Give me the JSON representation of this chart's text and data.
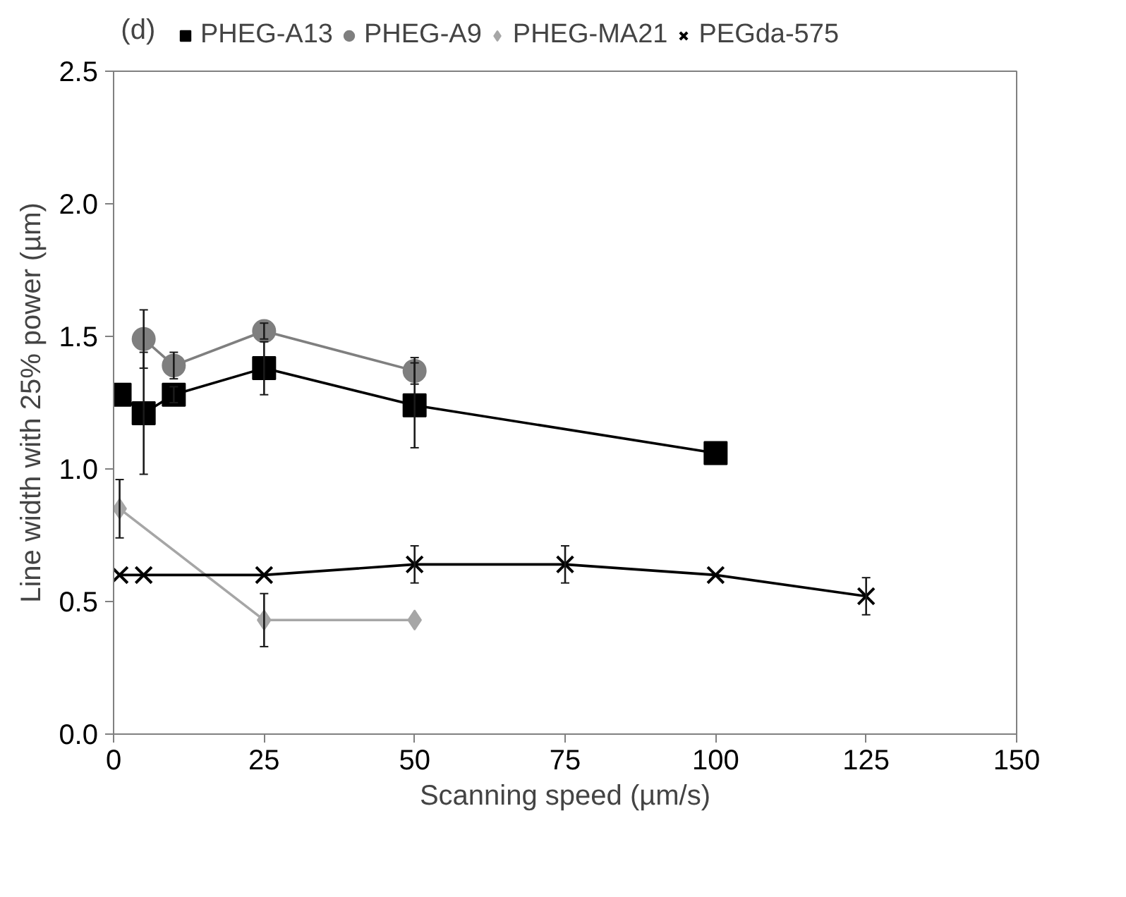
{
  "chart_data": {
    "type": "line",
    "xlabel": "Scanning speed (µm/s)",
    "ylabel": "Line width with 25% power (µm)",
    "annotations": [
      "(d)"
    ],
    "xlim": [
      0,
      150
    ],
    "xticks": [
      0,
      25,
      50,
      75,
      100,
      125,
      150
    ],
    "ylim": [
      0,
      2.5
    ],
    "yticks": [
      {
        "value": 0,
        "label": "0.0"
      },
      {
        "value": 0.5,
        "label": "0.5"
      },
      {
        "value": 1,
        "label": "1.0"
      },
      {
        "value": 1.5,
        "label": "1.5"
      },
      {
        "value": 2,
        "label": "2.0"
      },
      {
        "value": 2.5,
        "label": "2.5"
      }
    ],
    "grid": false,
    "legend": "top",
    "line_style": "solid",
    "series": [
      {
        "name": "PHEG-A13",
        "color": "#000000",
        "marker": "square",
        "x": [
          1,
          5,
          10,
          25,
          50,
          100
        ],
        "values": [
          1.28,
          1.21,
          1.28,
          1.38,
          1.24,
          1.06
        ],
        "errors": [
          null,
          0.23,
          0.03,
          0.1,
          0.16,
          null
        ]
      },
      {
        "name": "PHEG-A9",
        "color": "#7f7f7f",
        "marker": "circle",
        "x": [
          5,
          10,
          25,
          50
        ],
        "values": [
          1.49,
          1.39,
          1.52,
          1.37
        ],
        "errors": [
          0.11,
          0.05,
          0.03,
          0.05
        ]
      },
      {
        "name": "PHEG-MA21",
        "color": "#a6a6a6",
        "marker": "diamond",
        "x": [
          1,
          25,
          50
        ],
        "values": [
          0.85,
          0.43,
          0.43
        ],
        "errors": [
          0.11,
          0.1,
          null
        ]
      },
      {
        "name": "PEGda-575",
        "color": "#000000",
        "marker": "cross",
        "x": [
          1,
          5,
          25,
          50,
          75,
          100,
          125
        ],
        "values": [
          0.6,
          0.6,
          0.6,
          0.64,
          0.64,
          0.6,
          0.52
        ],
        "errors": [
          null,
          null,
          null,
          0.07,
          0.07,
          null,
          0.07
        ]
      }
    ]
  }
}
